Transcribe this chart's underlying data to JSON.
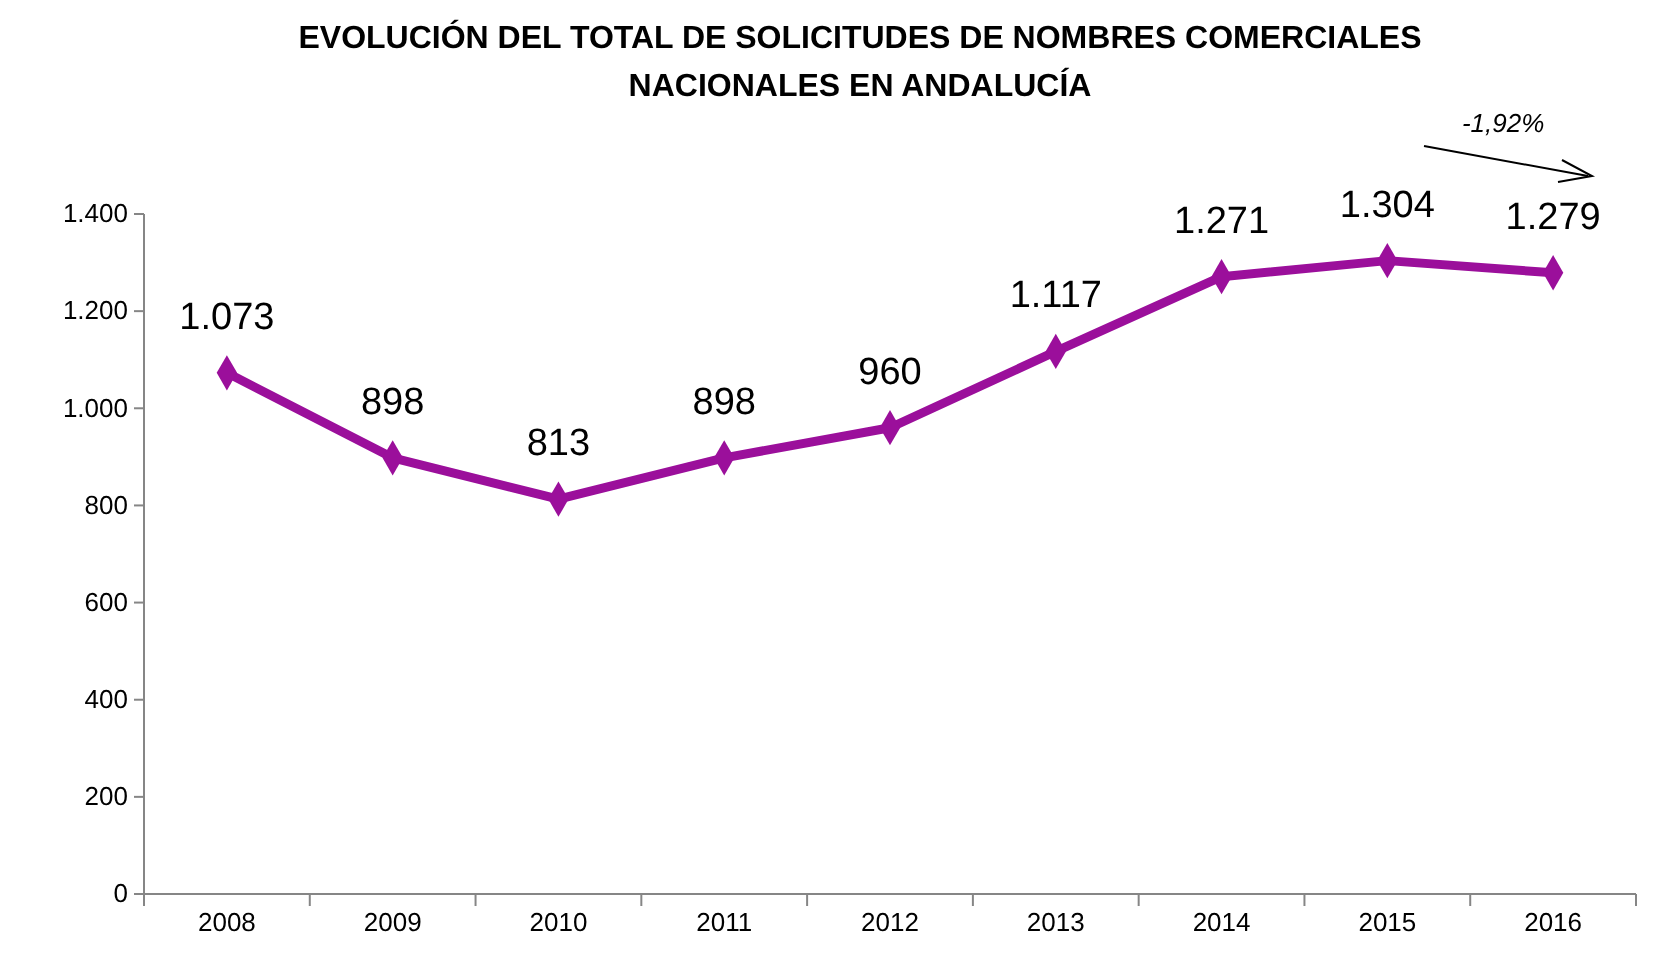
{
  "chart_data": {
    "type": "line",
    "title": "EVOLUCIÓN DEL TOTAL DE SOLICITUDES DE NOMBRES COMERCIALES NACIONALES EN ANDALUCÍA",
    "categories": [
      "2008",
      "2009",
      "2010",
      "2011",
      "2012",
      "2013",
      "2014",
      "2015",
      "2016"
    ],
    "series": [
      {
        "color": "#9b0f9b",
        "values": [
          1073,
          898,
          813,
          898,
          960,
          1117,
          1271,
          1304,
          1279
        ],
        "value_labels": [
          "1.073",
          "898",
          "813",
          "898",
          "960",
          "1.117",
          "1.271",
          "1.304",
          "1.279"
        ]
      }
    ],
    "ylim": [
      0,
      1400
    ],
    "yticks": [
      {
        "value": 0,
        "label": "0"
      },
      {
        "value": 200,
        "label": "200"
      },
      {
        "value": 400,
        "label": "400"
      },
      {
        "value": 600,
        "label": "600"
      },
      {
        "value": 800,
        "label": "800"
      },
      {
        "value": 1000,
        "label": "1.000"
      },
      {
        "value": 1200,
        "label": "1.200"
      },
      {
        "value": 1400,
        "label": "1.400"
      }
    ],
    "marker": "diamond",
    "line_style": "solid",
    "grid": false,
    "annotations": [
      "-1,92%"
    ]
  }
}
